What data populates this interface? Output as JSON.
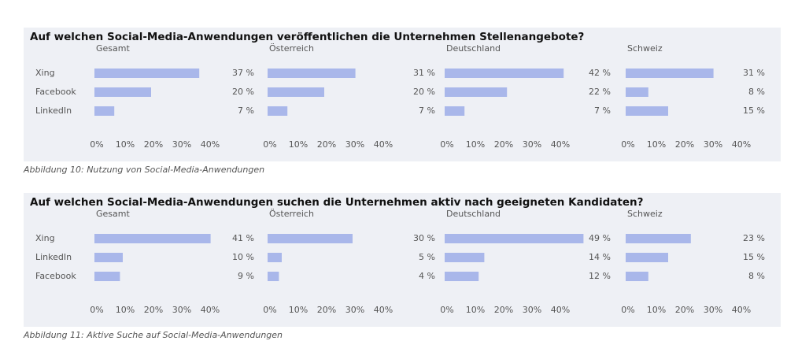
{
  "chart_data": [
    {
      "type": "bar",
      "title": "Auf welchen Social-Media-Anwendungen veröffentlichen die Unternehmen Stellenangebote?",
      "caption": "Abbildung 10: Nutzung von Social-Media-Anwendungen",
      "categories": [
        "Xing",
        "Facebook",
        "LinkedIn"
      ],
      "series": [
        {
          "name": "Gesamt",
          "color": "#a9b7ea",
          "values": [
            37,
            20,
            7
          ],
          "value_labels": [
            "37 %",
            "20 %",
            "7 %"
          ]
        },
        {
          "name": "Österreich",
          "color": "#a9b7ea",
          "values": [
            31,
            20,
            7
          ],
          "value_labels": [
            "31 %",
            "20 %",
            "7 %"
          ]
        },
        {
          "name": "Deutschland",
          "color": "#a9b7ea",
          "values": [
            42,
            22,
            7
          ],
          "value_labels": [
            "42 %",
            "22 %",
            "7 %"
          ]
        },
        {
          "name": "Schweiz",
          "color": "#a9b7ea",
          "values": [
            31,
            8,
            15
          ],
          "value_labels": [
            "31 %",
            "8 %",
            "15 %"
          ]
        }
      ],
      "xlim": [
        0,
        40
      ],
      "xticks": [
        {
          "value": 0,
          "label": "0%"
        },
        {
          "value": 10,
          "label": "10%"
        },
        {
          "value": 20,
          "label": "20%"
        },
        {
          "value": 30,
          "label": "30%"
        },
        {
          "value": 40,
          "label": "40%"
        }
      ]
    },
    {
      "type": "bar",
      "title": "Auf welchen Social-Media-Anwendungen suchen die Unternehmen aktiv nach geeigneten Kandidaten?",
      "caption": "Abbildung 11: Aktive Suche auf Social-Media-Anwendungen",
      "categories": [
        "Xing",
        "LinkedIn",
        "Facebook"
      ],
      "series": [
        {
          "name": "Gesamt",
          "color": "#a9b7ea",
          "values": [
            41,
            10,
            9
          ],
          "value_labels": [
            "41 %",
            "10 %",
            "9 %"
          ]
        },
        {
          "name": "Österreich",
          "color": "#a9b7ea",
          "values": [
            30,
            5,
            4
          ],
          "value_labels": [
            "30 %",
            "5 %",
            "4 %"
          ]
        },
        {
          "name": "Deutschland",
          "color": "#a9b7ea",
          "values": [
            49,
            14,
            12
          ],
          "value_labels": [
            "49 %",
            "14 %",
            "12 %"
          ]
        },
        {
          "name": "Schweiz",
          "color": "#a9b7ea",
          "values": [
            23,
            15,
            8
          ],
          "value_labels": [
            "23 %",
            "15 %",
            "8 %"
          ]
        }
      ],
      "xlim": [
        0,
        40
      ],
      "xticks": [
        {
          "value": 0,
          "label": "0%"
        },
        {
          "value": 10,
          "label": "10%"
        },
        {
          "value": 20,
          "label": "20%"
        },
        {
          "value": 30,
          "label": "30%"
        },
        {
          "value": 40,
          "label": "40%"
        }
      ]
    }
  ]
}
